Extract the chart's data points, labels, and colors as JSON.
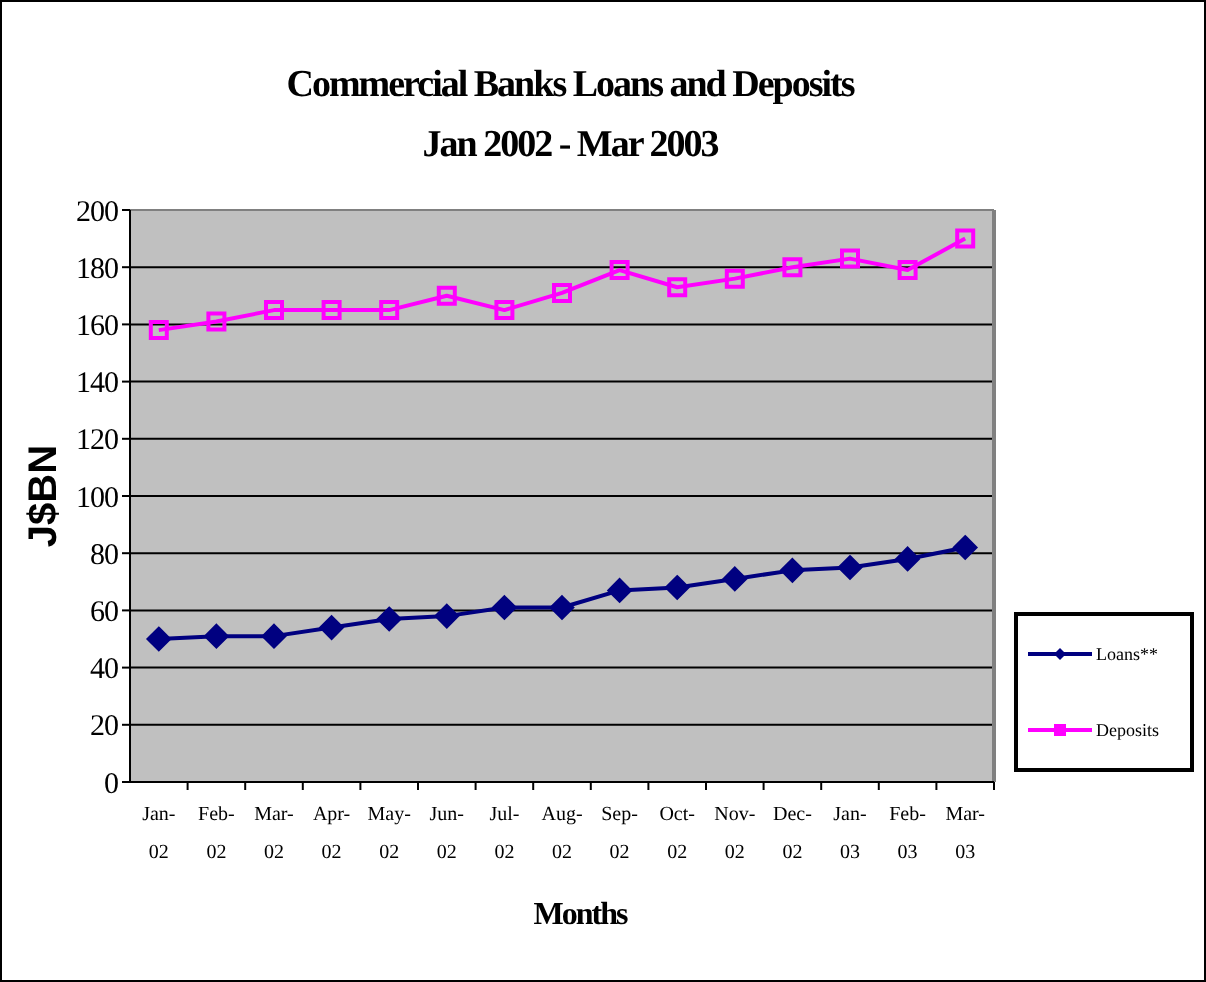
{
  "chart_data": {
    "type": "line",
    "title": "Commercial Banks Loans and Deposits",
    "subtitle": "Jan 2002 - Mar 2003",
    "xlabel": "Months",
    "ylabel": "J$BN",
    "categories": [
      "Jan-02",
      "Feb-02",
      "Mar-02",
      "Apr-02",
      "May-02",
      "Jun-02",
      "Jul-02",
      "Aug-02",
      "Sep-02",
      "Oct-02",
      "Nov-02",
      "Dec-02",
      "Jan-03",
      "Feb-03",
      "Mar-03"
    ],
    "series": [
      {
        "name": "Loans**",
        "color": "#000080",
        "marker": "diamond",
        "values": [
          50,
          51,
          51,
          54,
          57,
          58,
          61,
          61,
          67,
          68,
          71,
          74,
          75,
          78,
          82
        ]
      },
      {
        "name": "Deposits",
        "color": "#ff00ff",
        "marker": "square",
        "values": [
          158,
          161,
          165,
          165,
          165,
          170,
          165,
          171,
          179,
          173,
          176,
          180,
          183,
          179,
          190
        ]
      }
    ],
    "ylim": [
      0,
      200
    ],
    "yticks": [
      0,
      20,
      40,
      60,
      80,
      100,
      120,
      140,
      160,
      180,
      200
    ],
    "grid": "y",
    "legend": "right"
  }
}
